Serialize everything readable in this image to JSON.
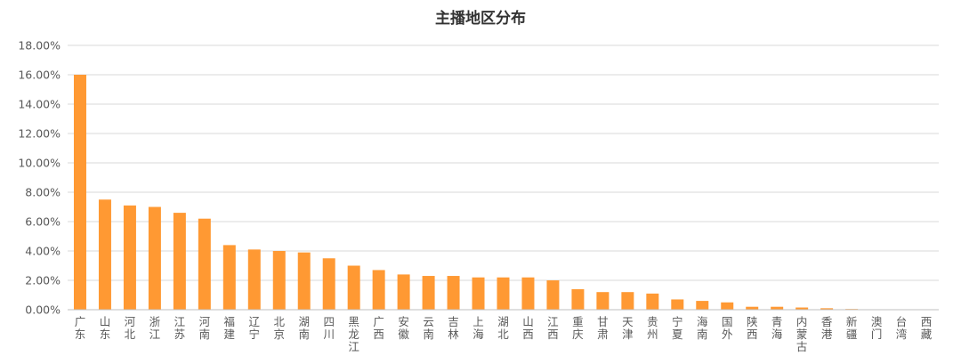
{
  "chart_data": {
    "type": "bar",
    "title": "主播地区分布",
    "xlabel": "",
    "ylabel": "",
    "ylim": [
      0,
      0.18
    ],
    "y_tick_values": [
      0,
      0.02,
      0.04,
      0.06,
      0.08,
      0.1,
      0.12,
      0.14,
      0.16,
      0.18
    ],
    "y_tick_labels": [
      "0.00%",
      "2.00%",
      "4.00%",
      "6.00%",
      "8.00%",
      "10.00%",
      "12.00%",
      "14.00%",
      "16.00%",
      "18.00%"
    ],
    "grid": true,
    "legend": "none",
    "bar_color": "#FF9933",
    "categories": [
      "广东",
      "山东",
      "河北",
      "浙江",
      "江苏",
      "河南",
      "福建",
      "辽宁",
      "北京",
      "湖南",
      "四川",
      "黑龙江",
      "广西",
      "安徽",
      "云南",
      "吉林",
      "上海",
      "湖北",
      "山西",
      "江西",
      "重庆",
      "甘肃",
      "天津",
      "贵州",
      "宁夏",
      "海南",
      "国外",
      "陕西",
      "青海",
      "内蒙古",
      "香港",
      "新疆",
      "澳门",
      "台湾",
      "西藏"
    ],
    "values": [
      0.16,
      0.075,
      0.071,
      0.07,
      0.066,
      0.062,
      0.044,
      0.041,
      0.04,
      0.039,
      0.035,
      0.03,
      0.027,
      0.024,
      0.023,
      0.023,
      0.022,
      0.022,
      0.022,
      0.02,
      0.014,
      0.012,
      0.012,
      0.011,
      0.007,
      0.006,
      0.005,
      0.002,
      0.002,
      0.0015,
      0.001,
      0.0005,
      0,
      0,
      0
    ]
  }
}
